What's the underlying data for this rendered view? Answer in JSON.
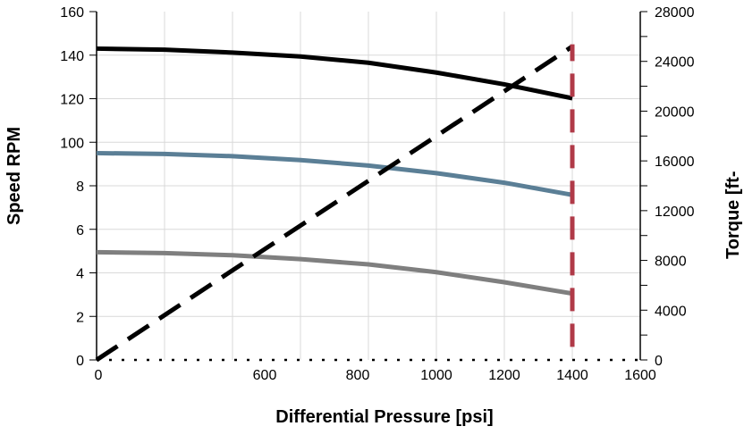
{
  "chart_data": {
    "type": "line",
    "title": "",
    "xlabel": "Differential Pressure [psi]",
    "ylabel_left": "Speed RPM",
    "ylabel_right": "Torque [ft-",
    "x_tick_labels": [
      "0",
      "600",
      "800",
      "1000",
      "1200",
      "1400",
      "1600"
    ],
    "y_left_tick_labels": [
      "0",
      "2",
      "4",
      "6",
      "8",
      "100",
      "120",
      "140",
      "160"
    ],
    "y_right_tick_labels": [
      "0",
      "4000",
      "8000",
      "12000",
      "16000",
      "20000",
      "24000",
      "28000"
    ],
    "xlim": [
      0,
      1600
    ],
    "ylim_left": [
      0,
      160
    ],
    "ylim_right": [
      0,
      28000
    ],
    "grid": true,
    "series": [
      {
        "color": "#000000",
        "style": "solid",
        "axis": "left",
        "x": [
          0,
          200,
          400,
          600,
          800,
          1000,
          1200,
          1400
        ],
        "y": [
          143,
          142.5,
          141.2,
          139.4,
          136.5,
          132,
          126.6,
          120.2
        ]
      },
      {
        "color": "#5b7f96",
        "style": "solid",
        "axis": "left",
        "x": [
          0,
          200,
          400,
          600,
          800,
          1000,
          1200,
          1400
        ],
        "y": [
          95,
          94.6,
          93.6,
          91.8,
          89.3,
          85.8,
          81.4,
          75.8
        ]
      },
      {
        "color": "#7f7f7f",
        "style": "solid",
        "axis": "left",
        "x": [
          0,
          200,
          400,
          600,
          800,
          1000,
          1200,
          1400
        ],
        "y": [
          49.5,
          49.1,
          48.1,
          46.3,
          43.9,
          40.3,
          35.7,
          30.5
        ]
      },
      {
        "color": "#000000",
        "style": "dashed",
        "axis": "right",
        "x": [
          0,
          1400
        ],
        "y": [
          0,
          25200
        ]
      },
      {
        "color": "#b03a48",
        "style": "dashed",
        "axis": "left",
        "vertical": true,
        "x": [
          1400,
          1400
        ],
        "y": [
          6,
          145
        ]
      }
    ]
  }
}
